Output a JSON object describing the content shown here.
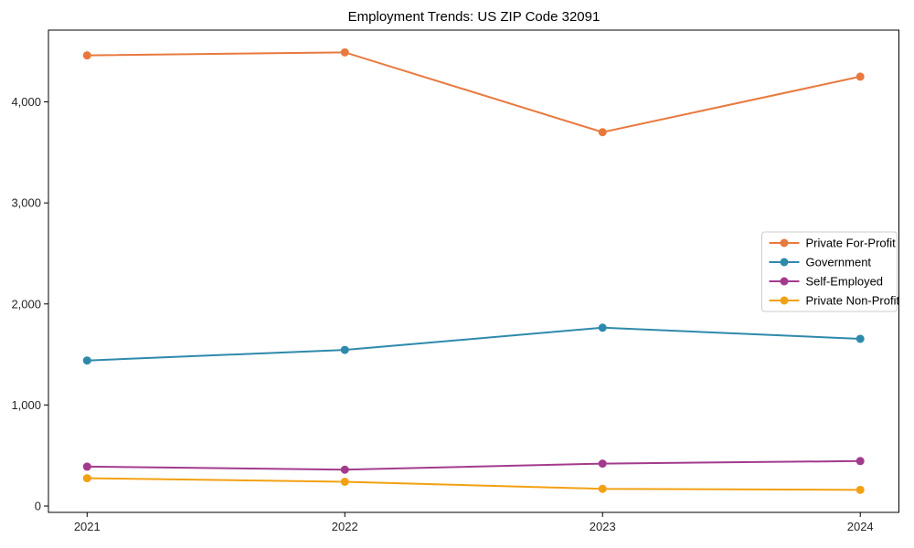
{
  "chart_data": {
    "type": "line",
    "title": "Employment Trends: US ZIP Code 32091",
    "xlabel": "",
    "ylabel": "",
    "x": [
      2021,
      2022,
      2023,
      2024
    ],
    "x_tick_labels": [
      "2021",
      "2022",
      "2023",
      "2024"
    ],
    "y_tick_values": [
      0,
      1000,
      2000,
      3000,
      4000
    ],
    "y_tick_labels": [
      "0",
      "1,000",
      "2,000",
      "3,000",
      "4,000"
    ],
    "xlim": [
      2020.85,
      2024.15
    ],
    "ylim": [
      -63,
      4710
    ],
    "grid": false,
    "legend_position": "center-right",
    "series": [
      {
        "name": "Private For-Profit",
        "color": "#e8793e",
        "values": [
          4460,
          4490,
          3700,
          4250
        ]
      },
      {
        "name": "Government",
        "color": "#2e8aab",
        "values": [
          1440,
          1545,
          1765,
          1655
        ]
      },
      {
        "name": "Self-Employed",
        "color": "#a33b8d",
        "values": [
          390,
          360,
          420,
          445
        ]
      },
      {
        "name": "Private Non-Profit",
        "color": "#f2a113",
        "values": [
          275,
          240,
          170,
          160
        ]
      }
    ],
    "axis_color": "#000000",
    "legend_border_color": "#cccccc"
  }
}
